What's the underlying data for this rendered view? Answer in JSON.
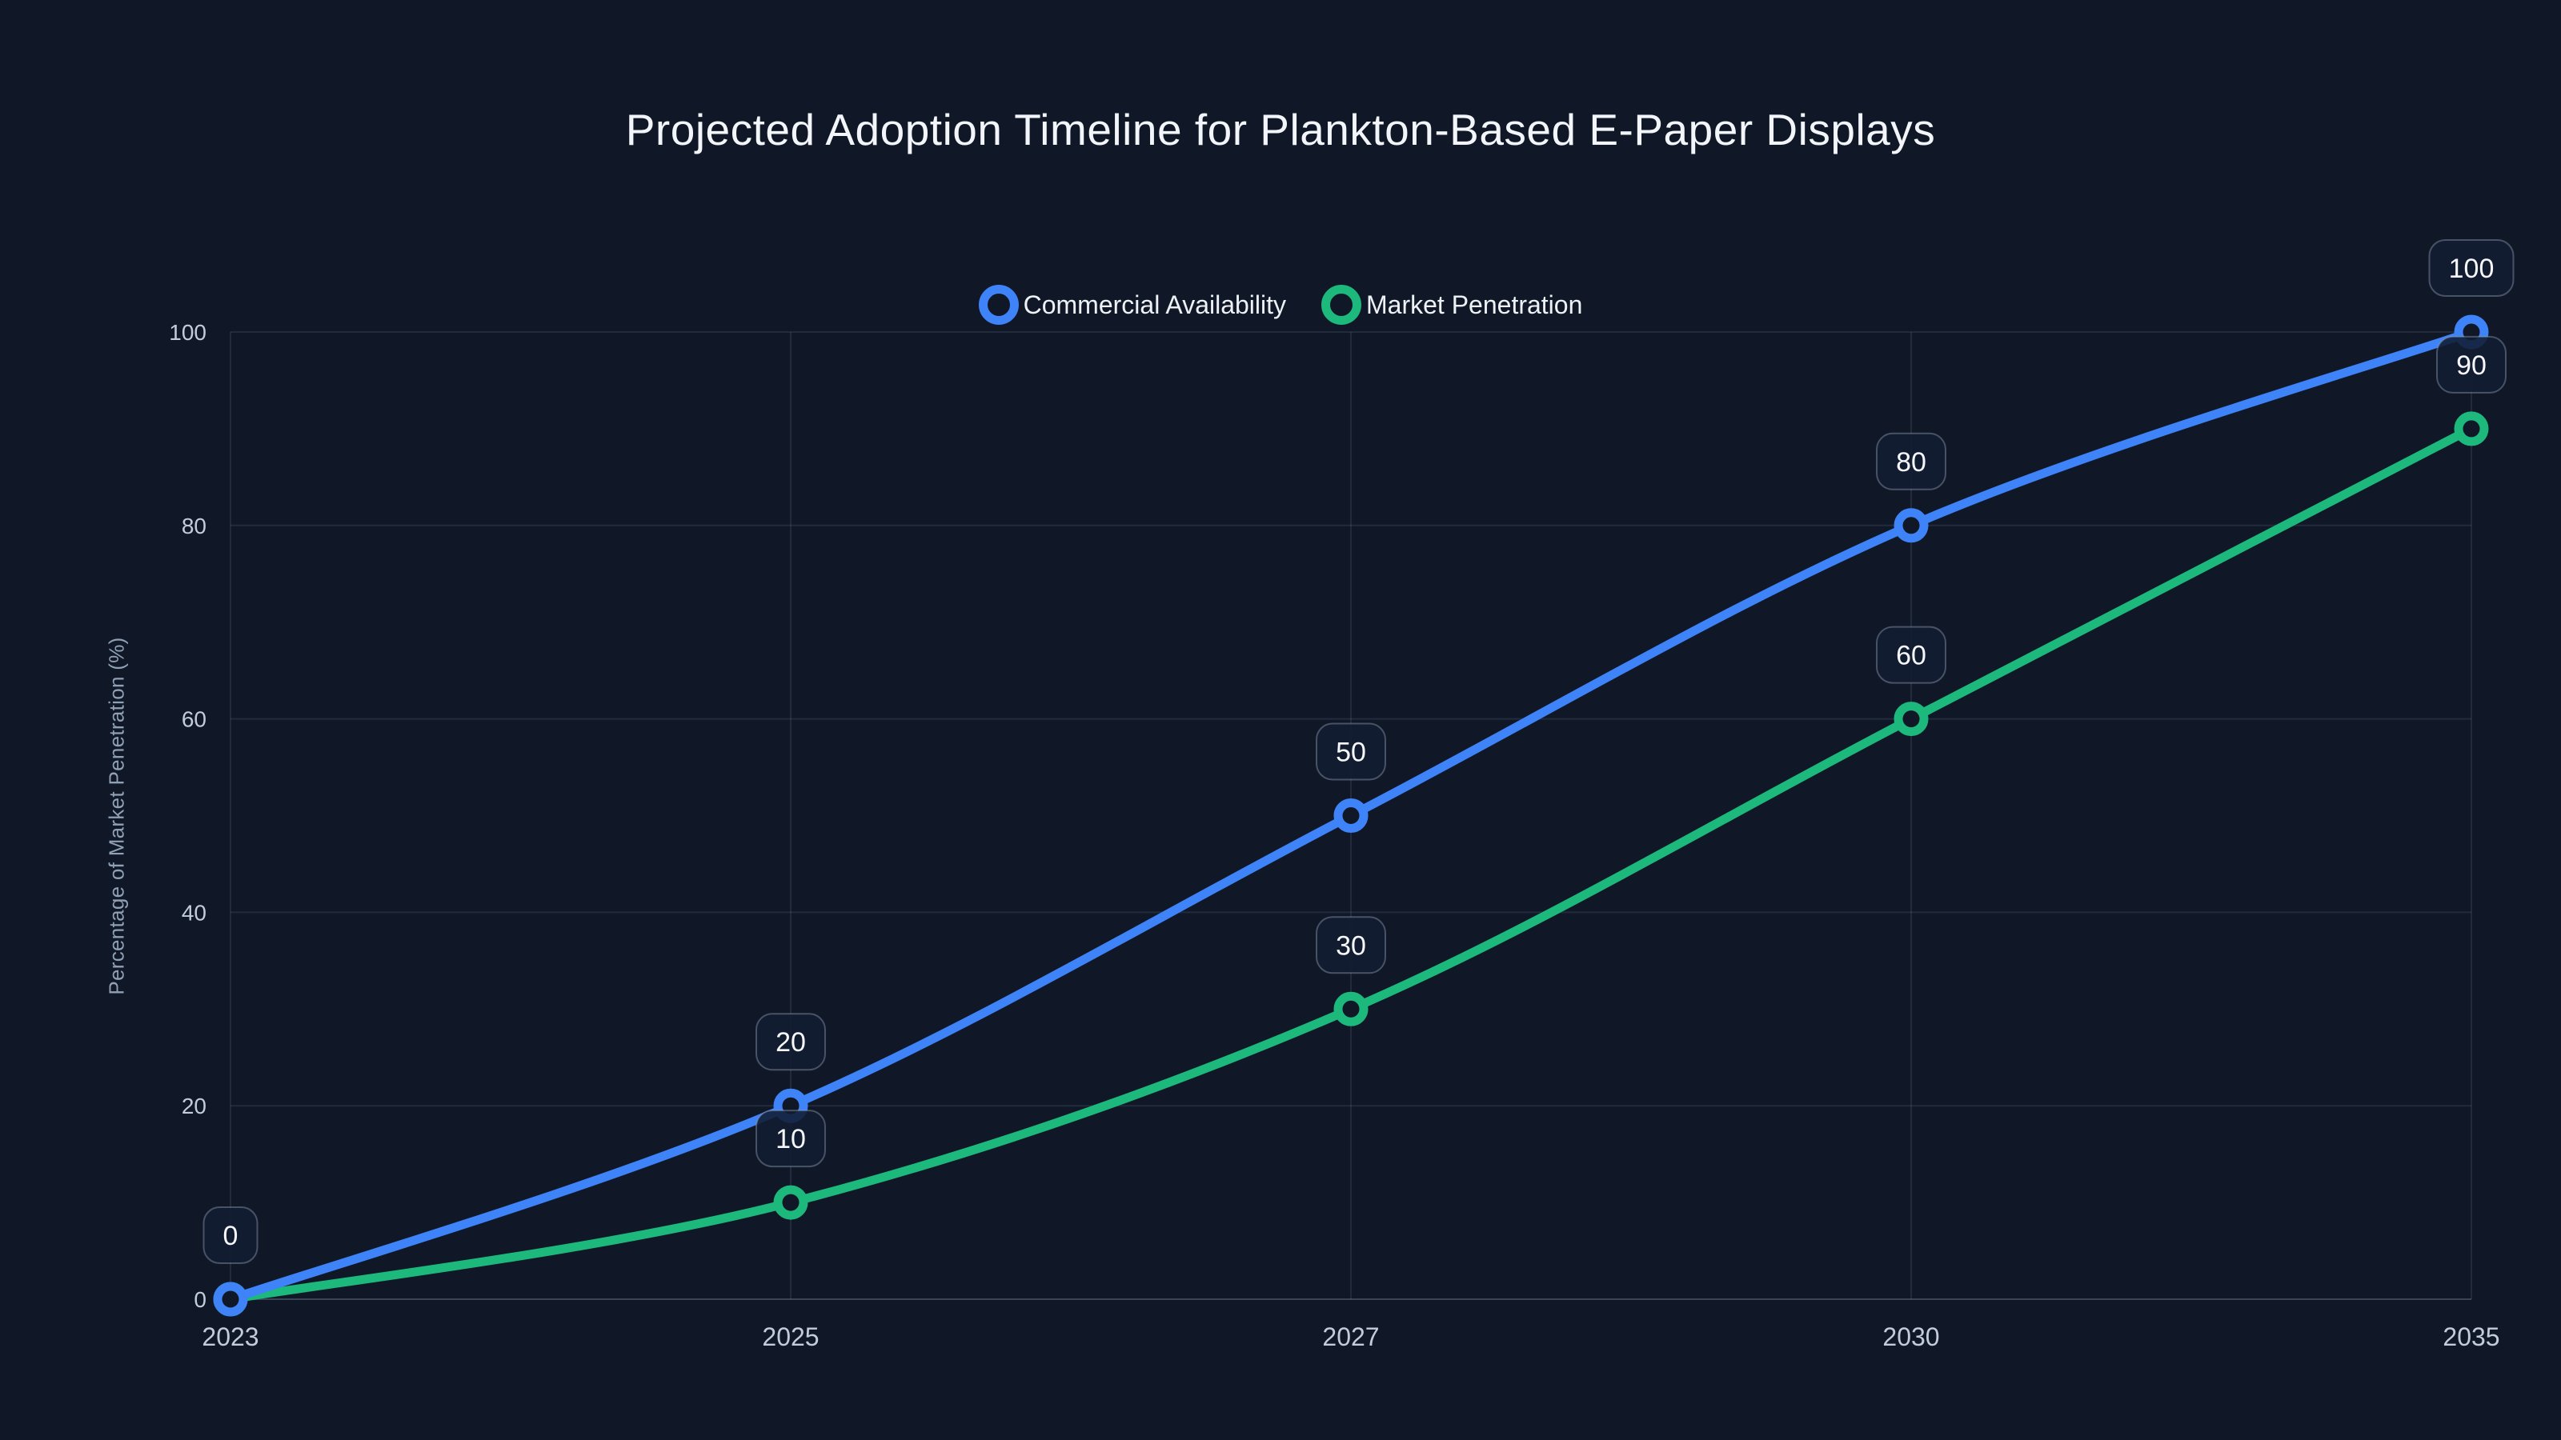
{
  "page": {
    "background_color": "#101828",
    "grid_color": "rgba(148,163,184,0.14)",
    "axis_line_color": "rgba(148,163,184,0.32)",
    "tick_label_color": "#c2ccda",
    "badge_fill": "#121d31",
    "badge_border_color": "rgba(148,163,184,0.42)",
    "badge_text_color": "#f5f7fa"
  },
  "chart_data": {
    "type": "line",
    "title": "Projected Adoption Timeline for Plankton-Based E-Paper Displays",
    "xlabel": "",
    "ylabel": "Percentage of Market Penetration (%)",
    "categories": [
      "2023",
      "2025",
      "2027",
      "2030",
      "2035"
    ],
    "series": [
      {
        "name": "Commercial Availability",
        "color": "#3f83f8",
        "values": [
          0,
          20,
          50,
          80,
          100
        ]
      },
      {
        "name": "Market Penetration",
        "color": "#1db87c",
        "values": [
          0,
          10,
          30,
          60,
          90
        ]
      }
    ],
    "ylim": [
      0,
      100
    ],
    "yticks": [
      0,
      20,
      40,
      60,
      80,
      100
    ],
    "grid": true,
    "legend_position": "top",
    "data_labels": true,
    "point_style": "open-circle",
    "line_smoothing": true
  }
}
